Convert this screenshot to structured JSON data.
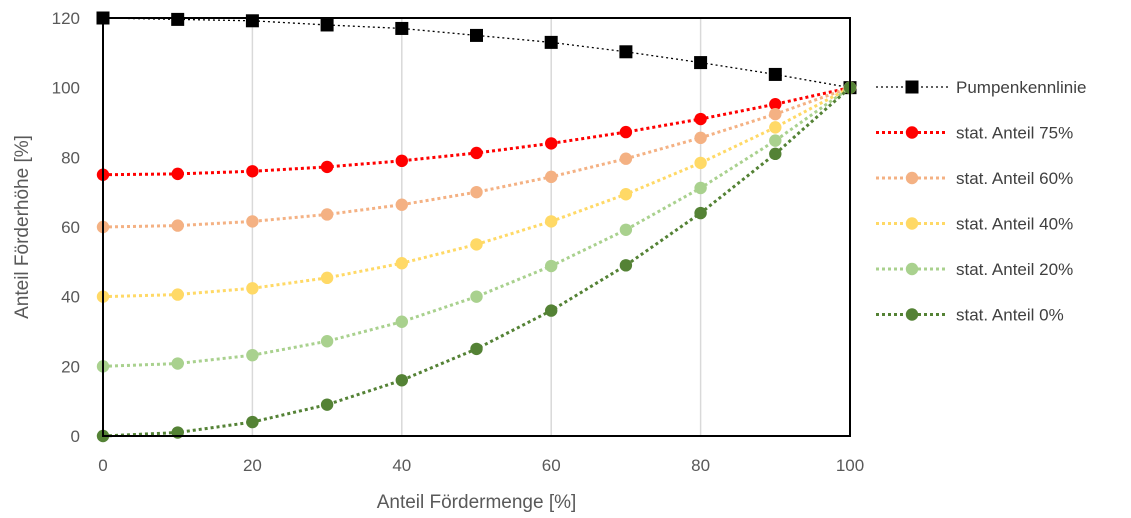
{
  "chart_data": {
    "type": "line",
    "xlabel": "Anteil Fördermenge [%]",
    "ylabel": "Anteil Förderhöhe [%]",
    "xlim": [
      0,
      100
    ],
    "ylim": [
      0,
      120
    ],
    "x_ticks": [
      "0",
      "20",
      "40",
      "60",
      "80",
      "100"
    ],
    "y_ticks": [
      "0",
      "20",
      "40",
      "60",
      "80",
      "100",
      "120"
    ],
    "grid": "vertical",
    "legend_position": "right",
    "x": [
      0,
      10,
      20,
      30,
      40,
      50,
      60,
      70,
      80,
      90,
      100
    ],
    "series": [
      {
        "name": "Pumpenkennlinie",
        "marker": "square",
        "color": "#000000",
        "values": [
          120,
          119.6,
          119.2,
          118,
          117,
          115,
          113,
          110.3,
          107.2,
          103.8,
          100
        ]
      },
      {
        "name": "stat. Anteil 75%",
        "marker": "circle",
        "color": "#ff0000",
        "values": [
          75,
          75.25,
          76,
          77.25,
          79,
          81.25,
          84,
          87.25,
          91,
          95.25,
          100
        ]
      },
      {
        "name": "stat. Anteil 60%",
        "marker": "circle",
        "color": "#f4b183",
        "values": [
          60,
          60.4,
          61.6,
          63.6,
          66.4,
          70,
          74.4,
          79.6,
          85.6,
          92.4,
          100
        ]
      },
      {
        "name": "stat. Anteil 40%",
        "marker": "circle",
        "color": "#ffd966",
        "values": [
          40,
          40.6,
          42.4,
          45.4,
          49.6,
          55,
          61.6,
          69.4,
          78.4,
          88.6,
          100
        ]
      },
      {
        "name": "stat. Anteil 20%",
        "marker": "circle",
        "color": "#a9d18e",
        "values": [
          20,
          20.8,
          23.2,
          27.2,
          32.8,
          40,
          48.8,
          59.2,
          71.2,
          84.8,
          100
        ]
      },
      {
        "name": "stat. Anteil 0%",
        "marker": "circle",
        "color": "#548235",
        "values": [
          0,
          1,
          4,
          9,
          16,
          25,
          36,
          49,
          64,
          81,
          100
        ]
      }
    ]
  }
}
